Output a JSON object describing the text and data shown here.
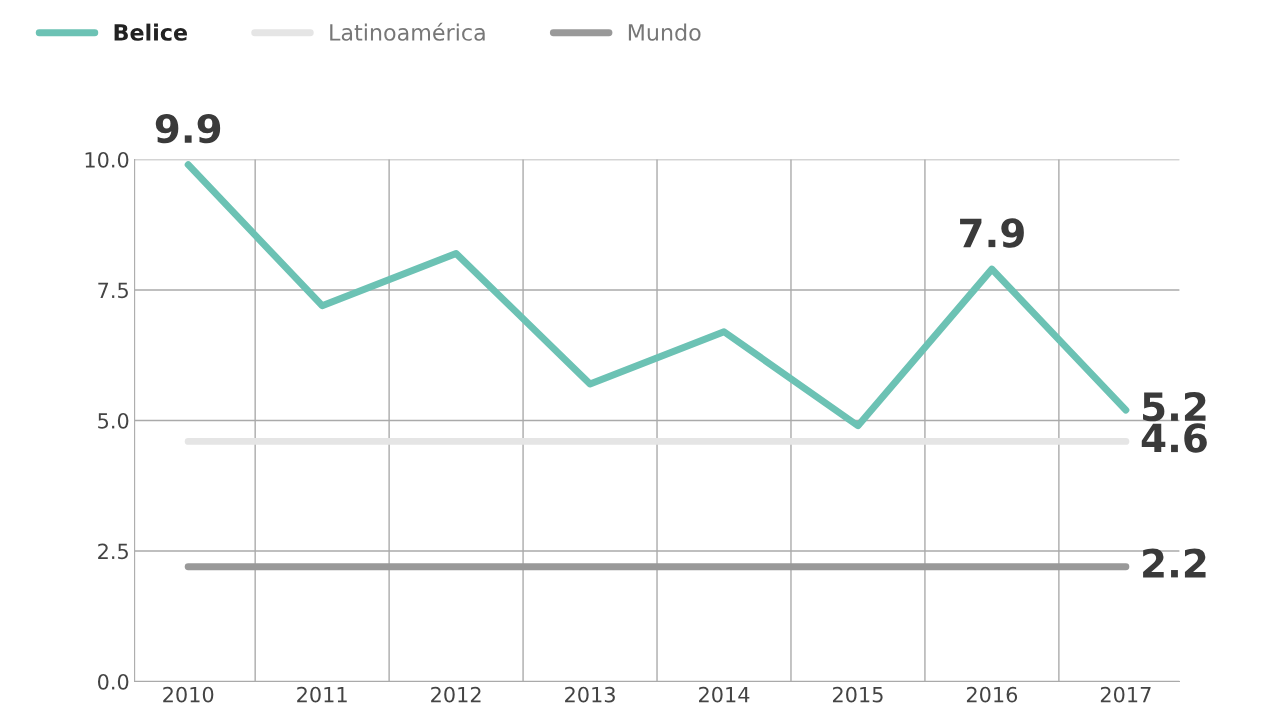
{
  "chart_data": {
    "type": "line",
    "categories": [
      "2010",
      "2011",
      "2012",
      "2013",
      "2014",
      "2015",
      "2016",
      "2017"
    ],
    "series": [
      {
        "name": "Belice",
        "color": "#6cc2b4",
        "values": [
          9.9,
          7.2,
          8.2,
          5.7,
          6.7,
          4.9,
          7.9,
          5.2
        ],
        "value_labels": [
          "9.9",
          null,
          null,
          null,
          null,
          null,
          "7.9",
          "5.2"
        ]
      },
      {
        "name": "Latinoamérica",
        "color": "#e5e5e5",
        "values": [
          4.6,
          4.6,
          4.6,
          4.6,
          4.6,
          4.6,
          4.6,
          4.6
        ],
        "value_labels": [
          null,
          null,
          null,
          null,
          null,
          null,
          null,
          "4.6"
        ]
      },
      {
        "name": "Mundo",
        "color": "#999999",
        "values": [
          2.2,
          2.2,
          2.2,
          2.2,
          2.2,
          2.2,
          2.2,
          2.2
        ],
        "value_labels": [
          null,
          null,
          null,
          null,
          null,
          null,
          null,
          "2.2"
        ]
      }
    ],
    "ylim": [
      0,
      10
    ],
    "yticks": [
      {
        "value": 0,
        "label": "0.0"
      },
      {
        "value": 2.5,
        "label": "2.5"
      },
      {
        "value": 5,
        "label": "5.0"
      },
      {
        "value": 7.5,
        "label": "7.5"
      },
      {
        "value": 10,
        "label": "10.0"
      }
    ],
    "grid": true,
    "legend": "top left",
    "marker": "none",
    "line_style": "solid"
  }
}
